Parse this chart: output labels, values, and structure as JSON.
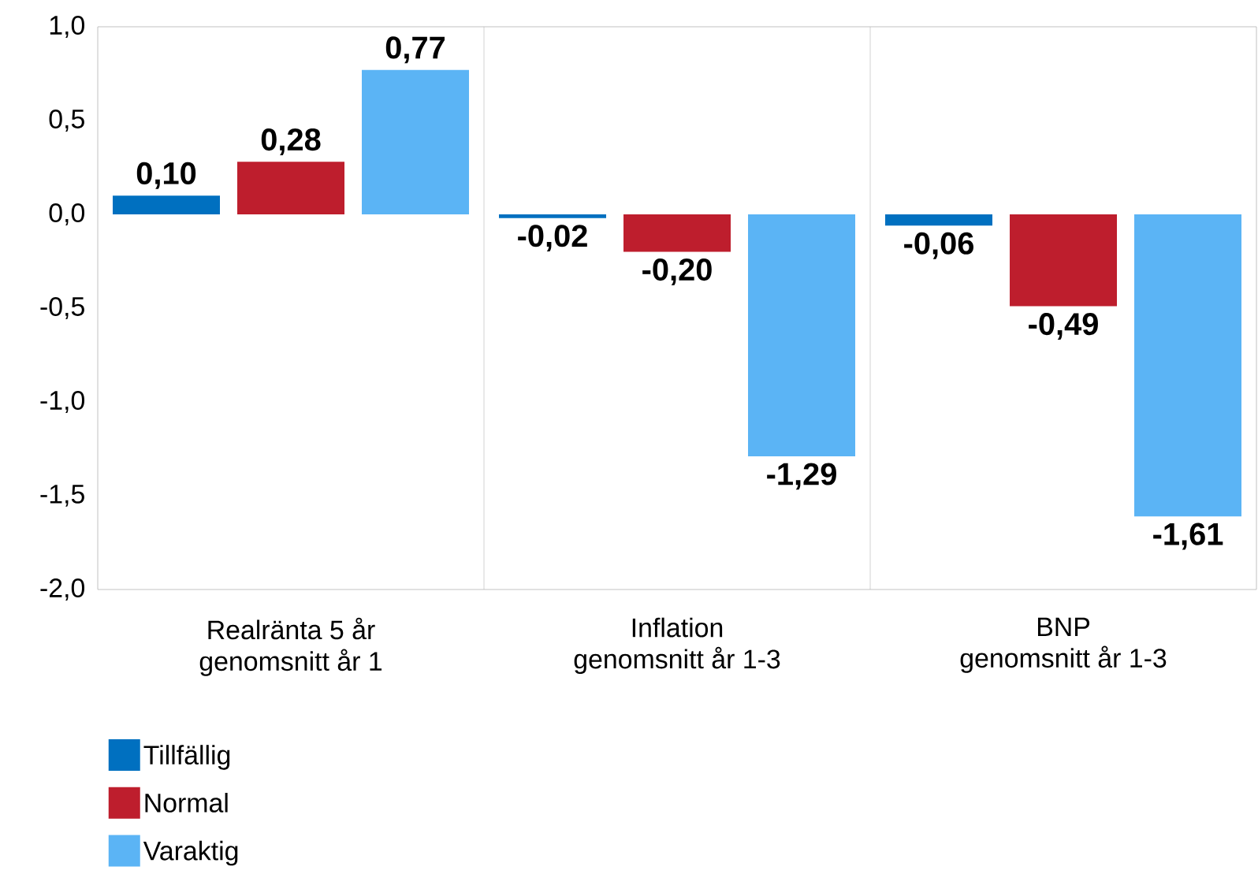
{
  "chart_data": {
    "type": "bar",
    "categories": [
      "Realränta 5 år\ngenomsnitt år 1",
      "Inflation\ngenomsnitt år 1-3",
      "BNP\ngenomsnitt år 1-3"
    ],
    "series": [
      {
        "name": "Tillfällig",
        "color": "#0070c0",
        "values": [
          0.1,
          -0.02,
          -0.06
        ],
        "value_labels": [
          "0,10",
          "-0,02",
          "-0,06"
        ]
      },
      {
        "name": "Normal",
        "color": "#be1e2d",
        "values": [
          0.28,
          -0.2,
          -0.49
        ],
        "value_labels": [
          "0,28",
          "-0,20",
          "-0,49"
        ]
      },
      {
        "name": "Varaktig",
        "color": "#5bb4f5",
        "values": [
          0.77,
          -1.29,
          -1.61
        ],
        "value_labels": [
          "0,77",
          "-1,29",
          "-1,61"
        ]
      }
    ],
    "ylim": [
      -2.0,
      1.0
    ],
    "yticks": [
      {
        "value": -2.0,
        "label": "-2,0"
      },
      {
        "value": -1.5,
        "label": "-1,5"
      },
      {
        "value": -1.0,
        "label": "-1,0"
      },
      {
        "value": -0.5,
        "label": "-0,5"
      },
      {
        "value": 0.0,
        "label": "0,0"
      },
      {
        "value": 0.5,
        "label": "0,5"
      },
      {
        "value": 1.0,
        "label": "1,0"
      }
    ],
    "grid": "x",
    "legend": "bottom left"
  }
}
